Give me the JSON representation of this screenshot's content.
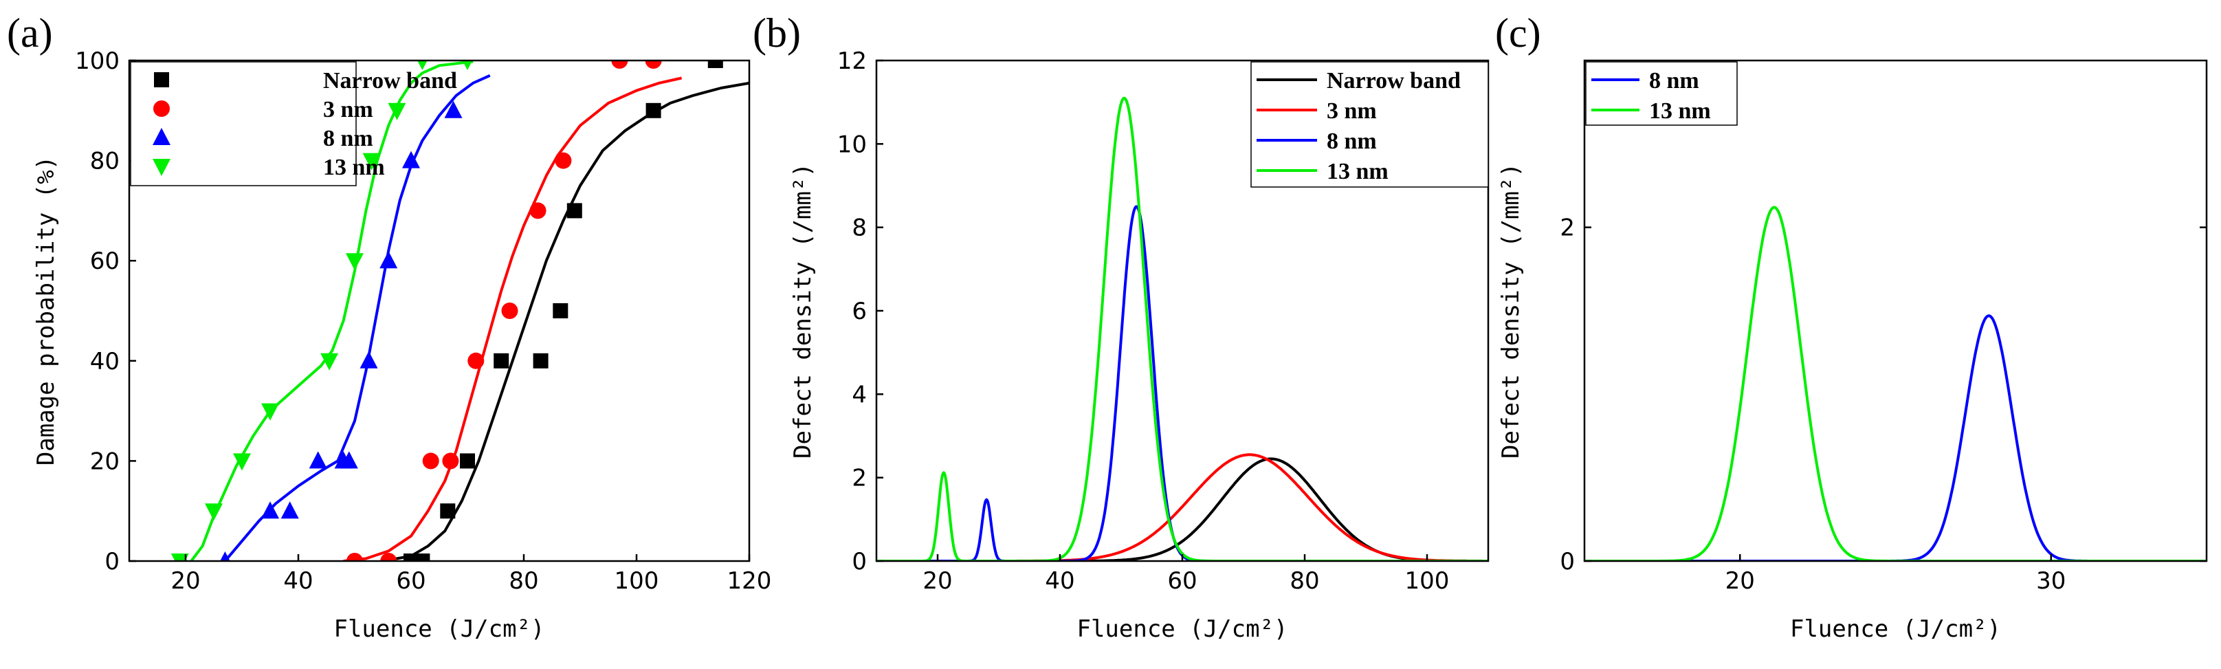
{
  "chart_data": [
    {
      "panel": "(a)",
      "type": "scatter",
      "title": "",
      "xlabel": "Fluence (J/cm²)",
      "ylabel": "Damage probability (%)",
      "xlim": [
        10,
        120
      ],
      "ylim": [
        0,
        100
      ],
      "xticks": [
        20,
        40,
        60,
        80,
        100,
        120
      ],
      "yticks": [
        0,
        20,
        40,
        60,
        80,
        100
      ],
      "legend_position": "top-left",
      "series": [
        {
          "name": "Narrow band",
          "color": "#000000",
          "marker": "square",
          "points": [
            [
              60,
              0
            ],
            [
              62,
              0
            ],
            [
              66.5,
              10
            ],
            [
              70,
              20
            ],
            [
              76,
              40
            ],
            [
              83,
              40
            ],
            [
              86.5,
              50
            ],
            [
              89,
              70
            ],
            [
              103,
              90
            ],
            [
              114,
              100
            ]
          ],
          "fit": [
            [
              55,
              0
            ],
            [
              60,
              1
            ],
            [
              63,
              3
            ],
            [
              66,
              6
            ],
            [
              69,
              12
            ],
            [
              72,
              20
            ],
            [
              75,
              30
            ],
            [
              78,
              40
            ],
            [
              81,
              50
            ],
            [
              84,
              60
            ],
            [
              87,
              68
            ],
            [
              90,
              75
            ],
            [
              94,
              82
            ],
            [
              98,
              86
            ],
            [
              102,
              89
            ],
            [
              106,
              91.5
            ],
            [
              110,
              93
            ],
            [
              115,
              94.5
            ],
            [
              120,
              95.5
            ]
          ]
        },
        {
          "name": "3 nm",
          "color": "#ff0000",
          "marker": "circle",
          "points": [
            [
              50,
              0
            ],
            [
              56,
              0
            ],
            [
              63.5,
              20
            ],
            [
              67,
              20
            ],
            [
              71.5,
              40
            ],
            [
              77.5,
              50
            ],
            [
              82.5,
              70
            ],
            [
              87,
              80
            ],
            [
              97,
              100
            ],
            [
              103,
              100
            ]
          ],
          "fit": [
            [
              48,
              0
            ],
            [
              52,
              0.5
            ],
            [
              56,
              2
            ],
            [
              60,
              5
            ],
            [
              63,
              10
            ],
            [
              66,
              16
            ],
            [
              68,
              22
            ],
            [
              70,
              30
            ],
            [
              72,
              38
            ],
            [
              74,
              46
            ],
            [
              76,
              54
            ],
            [
              78,
              61
            ],
            [
              80,
              67
            ],
            [
              82,
              72
            ],
            [
              84,
              77
            ],
            [
              86,
              81
            ],
            [
              90,
              87
            ],
            [
              95,
              91.5
            ],
            [
              100,
              94
            ],
            [
              104,
              95.5
            ],
            [
              108,
              96.5
            ]
          ]
        },
        {
          "name": "8 nm",
          "color": "#0000ff",
          "marker": "triangle-up",
          "points": [
            [
              27,
              0
            ],
            [
              35,
              10
            ],
            [
              38.5,
              10
            ],
            [
              43.5,
              20
            ],
            [
              48,
              20
            ],
            [
              49,
              20
            ],
            [
              52.5,
              40
            ],
            [
              56,
              60
            ],
            [
              60,
              80
            ],
            [
              67.5,
              90
            ]
          ],
          "fit": [
            [
              27,
              0
            ],
            [
              30,
              4
            ],
            [
              33,
              8
            ],
            [
              36,
              11.5
            ],
            [
              40,
              15
            ],
            [
              44,
              18
            ],
            [
              47,
              20
            ],
            [
              50,
              28
            ],
            [
              52,
              38
            ],
            [
              54,
              50
            ],
            [
              56,
              62
            ],
            [
              58,
              72
            ],
            [
              60,
              79
            ],
            [
              62,
              84
            ],
            [
              65,
              89
            ],
            [
              68,
              93
            ],
            [
              71,
              95.5
            ],
            [
              74,
              97
            ]
          ]
        },
        {
          "name": "13 nm",
          "color": "#00ee00",
          "marker": "triangle-down",
          "points": [
            [
              19,
              0
            ],
            [
              25,
              10
            ],
            [
              30,
              20
            ],
            [
              35,
              30
            ],
            [
              45.5,
              40
            ],
            [
              50,
              60
            ],
            [
              53,
              80
            ],
            [
              57.5,
              90
            ],
            [
              62,
              100
            ],
            [
              70,
              100
            ]
          ],
          "fit": [
            [
              21,
              0
            ],
            [
              23,
              3
            ],
            [
              25,
              9
            ],
            [
              27,
              14
            ],
            [
              29,
              19
            ],
            [
              32,
              25
            ],
            [
              35,
              30
            ],
            [
              38,
              33
            ],
            [
              41,
              36
            ],
            [
              44,
              39
            ],
            [
              46,
              42
            ],
            [
              48,
              48
            ],
            [
              50,
              58
            ],
            [
              52,
              70
            ],
            [
              54,
              80
            ],
            [
              56,
              87
            ],
            [
              58,
              92
            ],
            [
              60,
              95.5
            ],
            [
              62,
              97.5
            ],
            [
              65,
              99
            ],
            [
              71,
              99.8
            ]
          ]
        }
      ]
    },
    {
      "panel": "(b)",
      "type": "line",
      "title": "",
      "xlabel": "Fluence (J/cm²)",
      "ylabel": "Defect density (/mm²)",
      "xlim": [
        10,
        110
      ],
      "ylim": [
        0,
        12
      ],
      "xticks": [
        20,
        40,
        60,
        80,
        100
      ],
      "yticks": [
        0,
        2,
        4,
        6,
        8,
        10,
        12
      ],
      "legend_position": "top-right",
      "series": [
        {
          "name": "Narrow band",
          "color": "#000000",
          "peaks": [
            {
              "center": 74.5,
              "height": 2.45,
              "sigma": 8.0
            }
          ]
        },
        {
          "name": "3 nm",
          "color": "#ff0000",
          "peaks": [
            {
              "center": 71,
              "height": 2.55,
              "sigma": 9.5
            }
          ]
        },
        {
          "name": "8 nm",
          "color": "#0000ff",
          "peaks": [
            {
              "center": 28,
              "height": 1.47,
              "sigma": 0.75
            },
            {
              "center": 52.5,
              "height": 8.5,
              "sigma": 2.6
            }
          ]
        },
        {
          "name": "13 nm",
          "color": "#00ee00",
          "peaks": [
            {
              "center": 21,
              "height": 2.12,
              "sigma": 0.85
            },
            {
              "center": 50.5,
              "height": 11.1,
              "sigma": 3.3
            }
          ]
        }
      ]
    },
    {
      "panel": "(c)",
      "type": "line",
      "title": "",
      "xlabel": "Fluence (J/cm²)",
      "ylabel": "Defect density (/mm²)",
      "xlim": [
        15,
        35
      ],
      "ylim": [
        0,
        3
      ],
      "xticks": [
        20,
        30
      ],
      "yticks": [
        0,
        2
      ],
      "legend_position": "top-left",
      "series": [
        {
          "name": "8 nm",
          "color": "#0000ff",
          "peaks": [
            {
              "center": 28,
              "height": 1.47,
              "sigma": 0.75
            }
          ]
        },
        {
          "name": "13 nm",
          "color": "#00ee00",
          "peaks": [
            {
              "center": 21.1,
              "height": 2.12,
              "sigma": 0.85
            }
          ]
        }
      ]
    }
  ]
}
